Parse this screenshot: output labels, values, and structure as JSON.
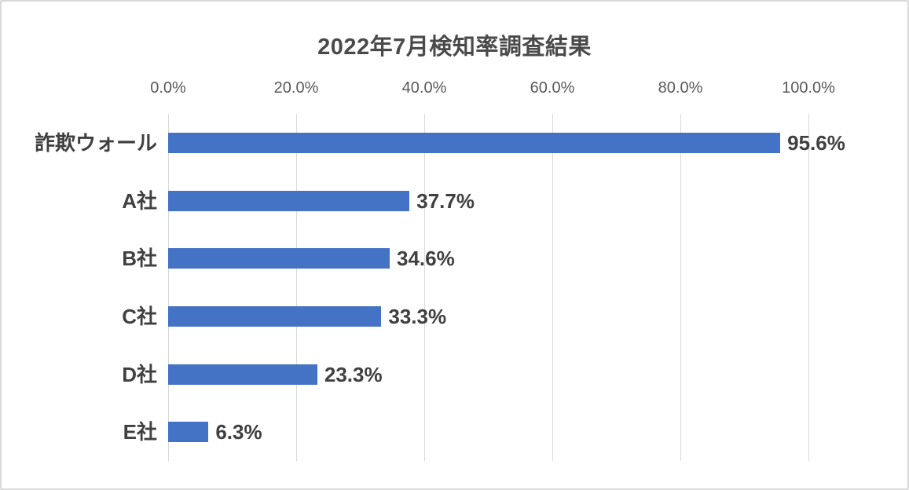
{
  "chart_data": {
    "type": "bar",
    "orientation": "horizontal",
    "title": "2022年7月検知率調査結果",
    "categories": [
      "詐欺ウォール",
      "A社",
      "B社",
      "C社",
      "D社",
      "E社"
    ],
    "values": [
      95.6,
      37.7,
      34.6,
      33.3,
      23.3,
      6.3
    ],
    "data_labels": [
      "95.6%",
      "37.7%",
      "34.6%",
      "33.3%",
      "23.3%",
      "6.3%"
    ],
    "xlabel": "",
    "ylabel": "",
    "x_axis": {
      "position": "top",
      "min": 0,
      "max": 100,
      "tick_step": 20,
      "tick_labels": [
        "0.0%",
        "20.0%",
        "40.0%",
        "60.0%",
        "80.0%",
        "100.0%"
      ]
    },
    "grid": "vertical-gridlines-on",
    "legend": "none",
    "colors": {
      "bar": "#4472C4",
      "gridline": "#D9D9D9",
      "axis_text": "#595959",
      "label_text": "#404040",
      "title_text": "#4A4A4A",
      "background": "#FFFFFF",
      "frame_border": "#D9D9D9"
    }
  }
}
